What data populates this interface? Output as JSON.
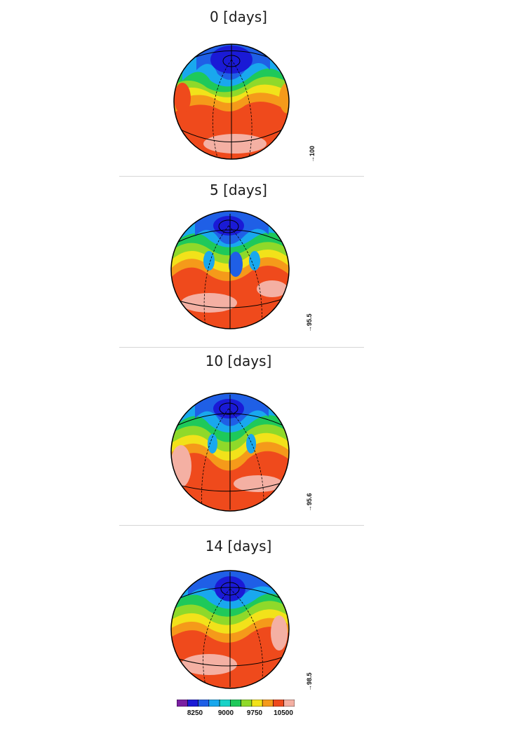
{
  "panels": [
    {
      "title": "0 [days]",
      "vector_ref": "100"
    },
    {
      "title": "5 [days]",
      "vector_ref": "95.5"
    },
    {
      "title": "10 [days]",
      "vector_ref": "95.6"
    },
    {
      "title": "14 [days]",
      "vector_ref": "98.5"
    }
  ],
  "colorbar": {
    "colors": [
      "#7a1fa2",
      "#1a1ad6",
      "#1f5fe6",
      "#19a8ee",
      "#18d3c8",
      "#1ec95a",
      "#8fd92a",
      "#f2e21a",
      "#f59a1a",
      "#ef4a1c",
      "#f4b0a3"
    ],
    "ticks": [
      "8250",
      "9000",
      "9750",
      "10500"
    ]
  }
}
